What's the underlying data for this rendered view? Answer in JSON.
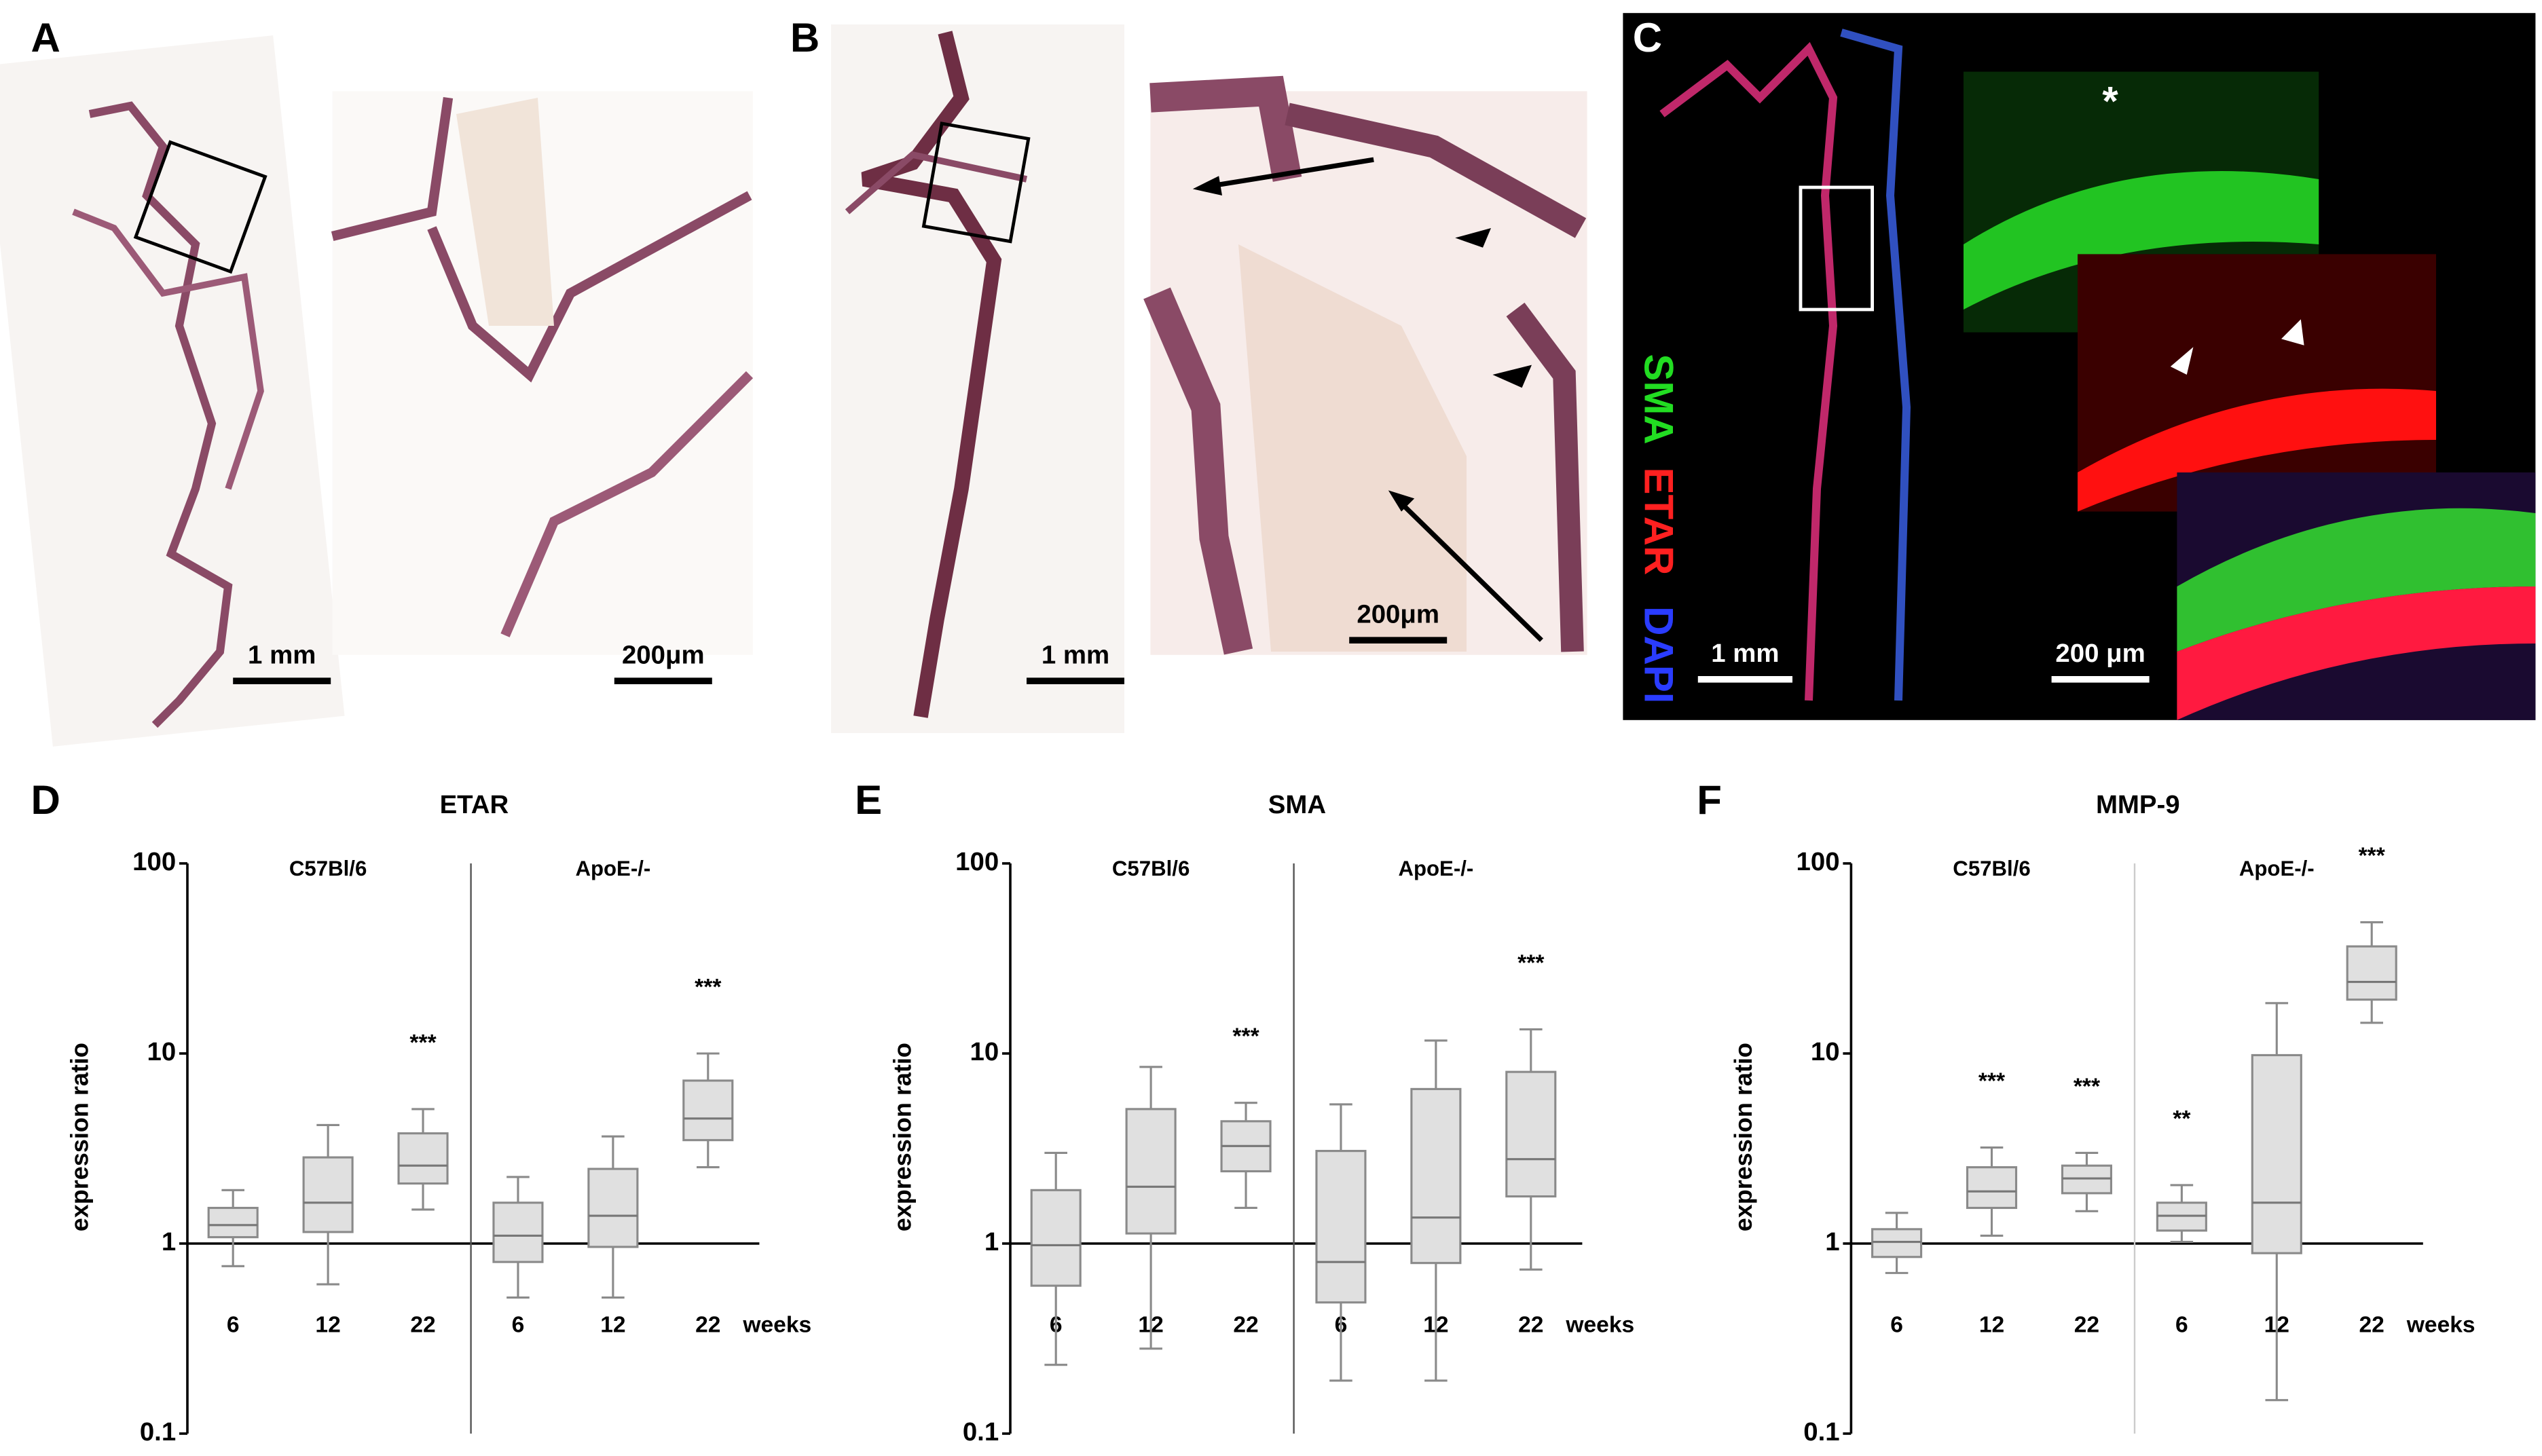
{
  "image_panels": [
    {
      "label": "A",
      "scale_bars": [
        "1 mm",
        "200μm"
      ]
    },
    {
      "label": "B",
      "scale_bars": [
        "1 mm",
        "200μm"
      ]
    },
    {
      "label": "C",
      "scale_bars": [
        "1 mm",
        "200 μm"
      ],
      "channels": [
        "SMA",
        "ETAR",
        "DAPI"
      ],
      "marker": "*"
    }
  ],
  "chart_data": [
    {
      "type": "box",
      "panel": "D",
      "title": "ETAR",
      "y_label": "expression ratio",
      "x_label": "weeks",
      "groups": [
        "C57Bl/6",
        "ApoE-/-"
      ],
      "categories": [
        "6",
        "12",
        "22",
        "6",
        "12",
        "22"
      ],
      "log_scale": true,
      "ylim": [
        0.1,
        100
      ],
      "yticks": [
        0.1,
        1,
        10,
        100
      ],
      "reference_line": 1,
      "color": "#e0e0e0",
      "boxes": [
        {
          "low": 0.76,
          "q1": 1.08,
          "median": 1.25,
          "q3": 1.54,
          "high": 1.91
        },
        {
          "low": 0.61,
          "q1": 1.15,
          "median": 1.64,
          "q3": 2.84,
          "high": 4.2
        },
        {
          "low": 1.51,
          "q1": 2.07,
          "median": 2.57,
          "q3": 3.8,
          "high": 5.1
        },
        {
          "low": 0.52,
          "q1": 0.8,
          "median": 1.1,
          "q3": 1.64,
          "high": 2.24
        },
        {
          "low": 0.52,
          "q1": 0.96,
          "median": 1.4,
          "q3": 2.47,
          "high": 3.66
        },
        {
          "low": 2.52,
          "q1": 3.5,
          "median": 4.55,
          "q3": 7.2,
          "high": 10
        }
      ],
      "annotations": [
        null,
        null,
        "***",
        null,
        null,
        "***"
      ]
    },
    {
      "type": "box",
      "panel": "E",
      "title": "SMA",
      "y_label": "expression ratio",
      "x_label": "weeks",
      "groups": [
        "C57Bl/6",
        "ApoE-/-"
      ],
      "categories": [
        "6",
        "12",
        "22",
        "6",
        "12",
        "22"
      ],
      "log_scale": true,
      "ylim": [
        0.1,
        100
      ],
      "yticks": [
        0.1,
        1,
        10,
        100
      ],
      "reference_line": 1,
      "color": "#e0e0e0",
      "boxes": [
        {
          "low": 0.23,
          "q1": 0.6,
          "median": 0.98,
          "q3": 1.91,
          "high": 3.0
        },
        {
          "low": 0.28,
          "q1": 1.13,
          "median": 1.99,
          "q3": 5.1,
          "high": 8.5
        },
        {
          "low": 1.54,
          "q1": 2.4,
          "median": 3.26,
          "q3": 4.4,
          "high": 5.5
        },
        {
          "low": 0.19,
          "q1": 0.49,
          "median": 0.8,
          "q3": 3.07,
          "high": 5.4
        },
        {
          "low": 0.19,
          "q1": 0.79,
          "median": 1.37,
          "q3": 6.5,
          "high": 11.7
        },
        {
          "low": 0.73,
          "q1": 1.77,
          "median": 2.78,
          "q3": 8.0,
          "high": 13.4
        }
      ],
      "annotations": [
        null,
        null,
        "***",
        null,
        null,
        "***"
      ]
    },
    {
      "type": "box",
      "panel": "F",
      "title": "MMP-9",
      "y_label": "expression ratio",
      "x_label": "weeks",
      "groups": [
        "C57Bl/6",
        "ApoE-/-"
      ],
      "categories": [
        "6",
        "12",
        "22",
        "6",
        "12",
        "22"
      ],
      "log_scale": true,
      "ylim": [
        0.1,
        100
      ],
      "yticks": [
        0.1,
        1,
        10,
        100
      ],
      "reference_line": 1,
      "color": "#e0e0e0",
      "boxes": [
        {
          "low": 0.7,
          "q1": 0.85,
          "median": 1.02,
          "q3": 1.19,
          "high": 1.45
        },
        {
          "low": 1.1,
          "q1": 1.54,
          "median": 1.88,
          "q3": 2.52,
          "high": 3.2
        },
        {
          "low": 1.48,
          "q1": 1.84,
          "median": 2.2,
          "q3": 2.57,
          "high": 3.0
        },
        {
          "low": 1.02,
          "q1": 1.17,
          "median": 1.4,
          "q3": 1.64,
          "high": 2.03
        },
        {
          "low": 0.15,
          "q1": 0.89,
          "median": 1.64,
          "q3": 9.8,
          "high": 18.4
        },
        {
          "low": 14.5,
          "q1": 19.2,
          "median": 23.8,
          "q3": 36.6,
          "high": 49
        }
      ],
      "annotations": [
        null,
        "***",
        "***",
        "**",
        null,
        "***"
      ]
    }
  ]
}
